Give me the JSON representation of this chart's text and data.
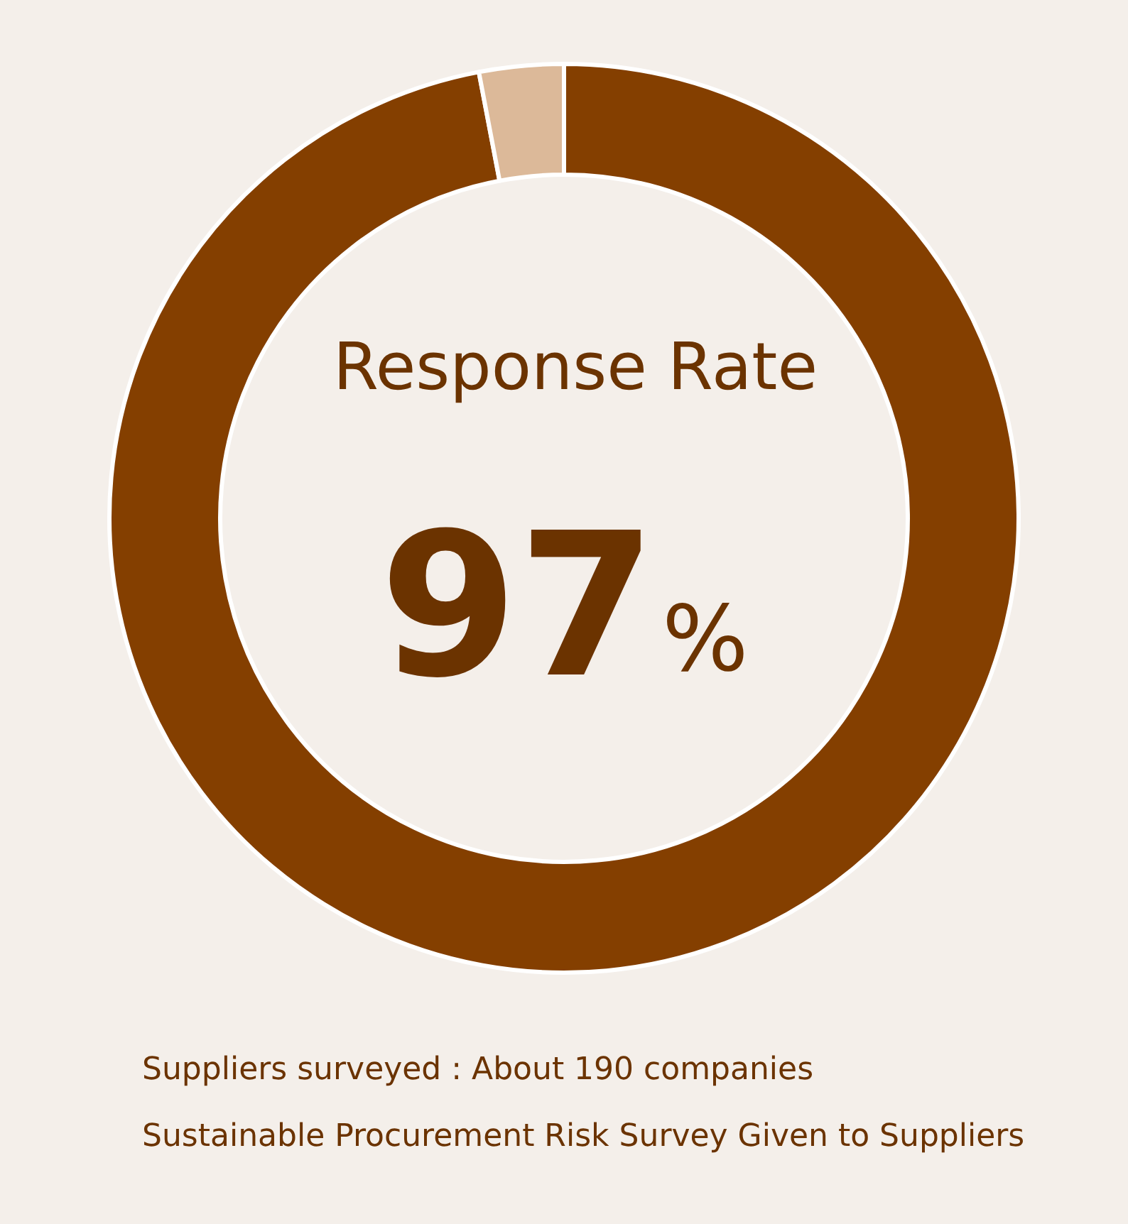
{
  "chart_data": {
    "type": "donut",
    "title": "Response Rate",
    "categories": [
      null,
      null
    ],
    "values": [
      97,
      3
    ],
    "colors": [
      "#843f00",
      "#dcb999"
    ],
    "value_labels": [
      "97%",
      null
    ],
    "annotations": [
      "Suppliers surveyed : About 190 companies",
      "Sustainable Procurement Risk Survey Given to Suppliers"
    ]
  }
}
